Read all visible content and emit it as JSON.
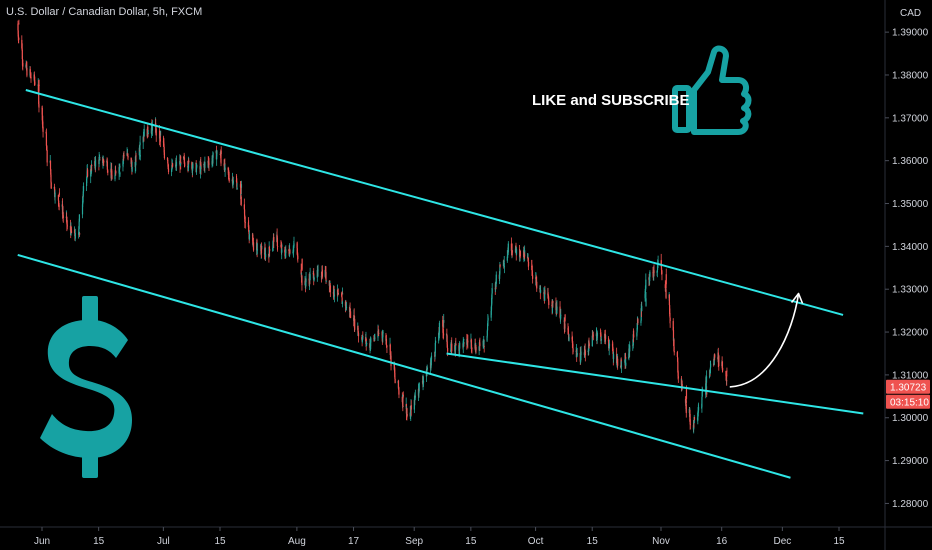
{
  "chart_data": {
    "type": "candlestick",
    "title": "U.S. Dollar / Canadian Dollar, 5h, FXCM",
    "currency": "CAD",
    "y_ticks": [
      "1.28000",
      "1.29000",
      "1.30000",
      "1.31000",
      "1.32000",
      "1.33000",
      "1.34000",
      "1.35000",
      "1.36000",
      "1.37000",
      "1.38000",
      "1.39000"
    ],
    "ylim": [
      1.2745,
      1.3975
    ],
    "x_ticks": [
      "Jun",
      "15",
      "Jul",
      "15",
      "Aug",
      "17",
      "Sep",
      "15",
      "Oct",
      "15",
      "Nov",
      "16",
      "Dec",
      "15"
    ],
    "x_tick_dates": [
      "2020-06-01",
      "2020-06-15",
      "2020-07-01",
      "2020-07-15",
      "2020-08-03",
      "2020-08-17",
      "2020-09-01",
      "2020-09-15",
      "2020-10-01",
      "2020-10-15",
      "2020-11-01",
      "2020-11-16",
      "2020-12-01",
      "2020-12-15"
    ],
    "price_path": [
      [
        "2020-05-26",
        1.392
      ],
      [
        "2020-05-28",
        1.382
      ],
      [
        "2020-05-31",
        1.378
      ],
      [
        "2020-06-02",
        1.366
      ],
      [
        "2020-06-04",
        1.354
      ],
      [
        "2020-06-06",
        1.349
      ],
      [
        "2020-06-08",
        1.344
      ],
      [
        "2020-06-10",
        1.342
      ],
      [
        "2020-06-12",
        1.356
      ],
      [
        "2020-06-15",
        1.36
      ],
      [
        "2020-06-17",
        1.36
      ],
      [
        "2020-06-19",
        1.356
      ],
      [
        "2020-06-22",
        1.362
      ],
      [
        "2020-06-24",
        1.358
      ],
      [
        "2020-06-26",
        1.366
      ],
      [
        "2020-06-29",
        1.368
      ],
      [
        "2020-07-01",
        1.364
      ],
      [
        "2020-07-03",
        1.358
      ],
      [
        "2020-07-06",
        1.36
      ],
      [
        "2020-07-08",
        1.359
      ],
      [
        "2020-07-10",
        1.358
      ],
      [
        "2020-07-13",
        1.36
      ],
      [
        "2020-07-15",
        1.362
      ],
      [
        "2020-07-17",
        1.357
      ],
      [
        "2020-07-20",
        1.354
      ],
      [
        "2020-07-22",
        1.344
      ],
      [
        "2020-07-24",
        1.34
      ],
      [
        "2020-07-27",
        1.338
      ],
      [
        "2020-07-29",
        1.342
      ],
      [
        "2020-07-31",
        1.338
      ],
      [
        "2020-08-03",
        1.34
      ],
      [
        "2020-08-05",
        1.331
      ],
      [
        "2020-08-07",
        1.333
      ],
      [
        "2020-08-10",
        1.334
      ],
      [
        "2020-08-12",
        1.33
      ],
      [
        "2020-08-14",
        1.328
      ],
      [
        "2020-08-17",
        1.324
      ],
      [
        "2020-08-19",
        1.319
      ],
      [
        "2020-08-21",
        1.317
      ],
      [
        "2020-08-24",
        1.32
      ],
      [
        "2020-08-26",
        1.317
      ],
      [
        "2020-08-28",
        1.308
      ],
      [
        "2020-08-31",
        1.3
      ],
      [
        "2020-09-02",
        1.306
      ],
      [
        "2020-09-04",
        1.31
      ],
      [
        "2020-09-06",
        1.314
      ],
      [
        "2020-09-08",
        1.322
      ],
      [
        "2020-09-10",
        1.316
      ],
      [
        "2020-09-13",
        1.317
      ],
      [
        "2020-09-15",
        1.318
      ],
      [
        "2020-09-17",
        1.316
      ],
      [
        "2020-09-19",
        1.319
      ],
      [
        "2020-09-21",
        1.33
      ],
      [
        "2020-09-23",
        1.336
      ],
      [
        "2020-09-25",
        1.34
      ],
      [
        "2020-09-28",
        1.338
      ],
      [
        "2020-09-30",
        1.336
      ],
      [
        "2020-10-02",
        1.33
      ],
      [
        "2020-10-05",
        1.327
      ],
      [
        "2020-10-07",
        1.325
      ],
      [
        "2020-10-09",
        1.32
      ],
      [
        "2020-10-12",
        1.314
      ],
      [
        "2020-10-14",
        1.316
      ],
      [
        "2020-10-16",
        1.32
      ],
      [
        "2020-10-19",
        1.318
      ],
      [
        "2020-10-21",
        1.314
      ],
      [
        "2020-10-23",
        1.312
      ],
      [
        "2020-10-25",
        1.317
      ],
      [
        "2020-10-27",
        1.323
      ],
      [
        "2020-10-29",
        1.332
      ],
      [
        "2020-11-01",
        1.336
      ],
      [
        "2020-11-03",
        1.328
      ],
      [
        "2020-11-05",
        1.314
      ],
      [
        "2020-11-07",
        1.305
      ],
      [
        "2020-11-09",
        1.298
      ],
      [
        "2020-11-11",
        1.303
      ],
      [
        "2020-11-13",
        1.31
      ],
      [
        "2020-11-15",
        1.315
      ],
      [
        "2020-11-17",
        1.311
      ],
      [
        "2020-11-18",
        1.3072
      ]
    ],
    "last_price_label": "1.30723",
    "countdown_label": "03:15:10",
    "trend_lines": [
      {
        "name": "channel-top",
        "points": [
          [
            "2020-05-28",
            1.3765
          ],
          [
            "2020-12-16",
            1.324
          ]
        ]
      },
      {
        "name": "channel-bottom",
        "points": [
          [
            "2020-05-26",
            1.338
          ],
          [
            "2020-12-03",
            1.286
          ]
        ]
      },
      {
        "name": "support-line",
        "points": [
          [
            "2020-09-09",
            1.315
          ],
          [
            "2020-12-21",
            1.301
          ]
        ]
      }
    ],
    "projection_arrow": {
      "from": [
        "2020-11-18",
        1.3072
      ],
      "to": [
        "2020-12-05",
        1.329
      ]
    },
    "colors": {
      "background": "#000000",
      "up": "#26a69a",
      "down": "#ef5350",
      "trend_line": "#2ee6e6",
      "axis_text": "#d1d4dc",
      "arrow": "#ffffff",
      "price_tag": "#ef5350",
      "icon": "#17a2a3"
    }
  },
  "overlay": {
    "callout": "LIKE and SUBSCRIBE",
    "dollar_icon": "dollar-sign-icon",
    "thumb_icon": "thumbs-up-icon"
  }
}
